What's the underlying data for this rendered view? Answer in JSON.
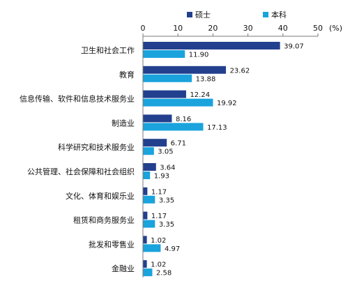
{
  "chart_data": {
    "type": "bar",
    "orientation": "horizontal",
    "title": "",
    "xlabel": "",
    "ylabel": "",
    "unit": "(%)",
    "xlim": [
      0,
      50
    ],
    "x_ticks": [
      0,
      10,
      20,
      30,
      40,
      50
    ],
    "grid": false,
    "legend_position": "top-right",
    "categories": [
      "卫生和社会工作",
      "教育",
      "信息传输、软件和信息技术服务业",
      "制造业",
      "科学研究和技术服务业",
      "公共管理、社会保障和社会组织",
      "文化、体育和娱乐业",
      "租赁和商务服务业",
      "批发和零售业",
      "金融业"
    ],
    "series": [
      {
        "name": "硕士",
        "color": "#23408e",
        "values": [
          39.07,
          23.62,
          12.24,
          8.16,
          6.71,
          3.64,
          1.17,
          1.17,
          1.02,
          1.02
        ],
        "labels": [
          "39.07",
          "23.62",
          "12.24",
          "8.16",
          "6.71",
          "3.64",
          "1.17",
          "1.17",
          "1.02",
          "1.02"
        ]
      },
      {
        "name": "本科",
        "color": "#1aa3dc",
        "values": [
          11.9,
          13.88,
          19.92,
          17.13,
          3.05,
          1.93,
          3.35,
          3.35,
          4.97,
          2.58
        ],
        "labels": [
          "11.90",
          "13.88",
          "19.92",
          "17.13",
          "3.05",
          "1.93",
          "3.35",
          "3.35",
          "4.97",
          "2.58"
        ]
      }
    ]
  }
}
